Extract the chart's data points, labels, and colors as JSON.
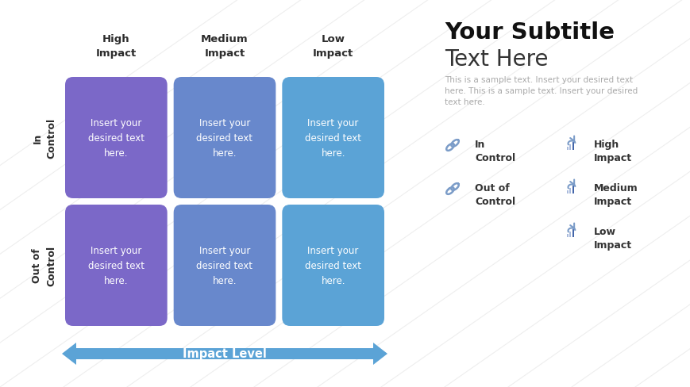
{
  "title_bold": "Your Subtitle",
  "title_light": "Text Here",
  "sample_text": "This is a sample text. Insert your desired text\nhere. This is a sample text. Insert your desired\ntext here.",
  "col_headers": [
    "High\nImpact",
    "Medium\nImpact",
    "Low\nImpact"
  ],
  "row_header_top": "In\nControl",
  "row_header_bottom": "Out of\nControl",
  "cell_text": "Insert your\ndesired text\nhere.",
  "x_axis_label": "Impact Level",
  "cell_colors_top": [
    "#7B68C8",
    "#6888CC",
    "#5BA3D6"
  ],
  "cell_colors_bottom": [
    "#7B68C8",
    "#6888CC",
    "#5BA3D6"
  ],
  "background_color": "#ffffff",
  "text_color_white": "#ffffff",
  "text_color_dark": "#2c2c2c",
  "text_color_gray": "#aaaaaa",
  "arrow_color": "#5BA3D6",
  "legend_left": [
    "In\nControl",
    "Out of\nControl"
  ],
  "legend_right": [
    "High\nImpact",
    "Medium\nImpact",
    "Low\nImpact"
  ],
  "icon_color": "#7B9CC8",
  "grid_line_color": "#dddddd"
}
